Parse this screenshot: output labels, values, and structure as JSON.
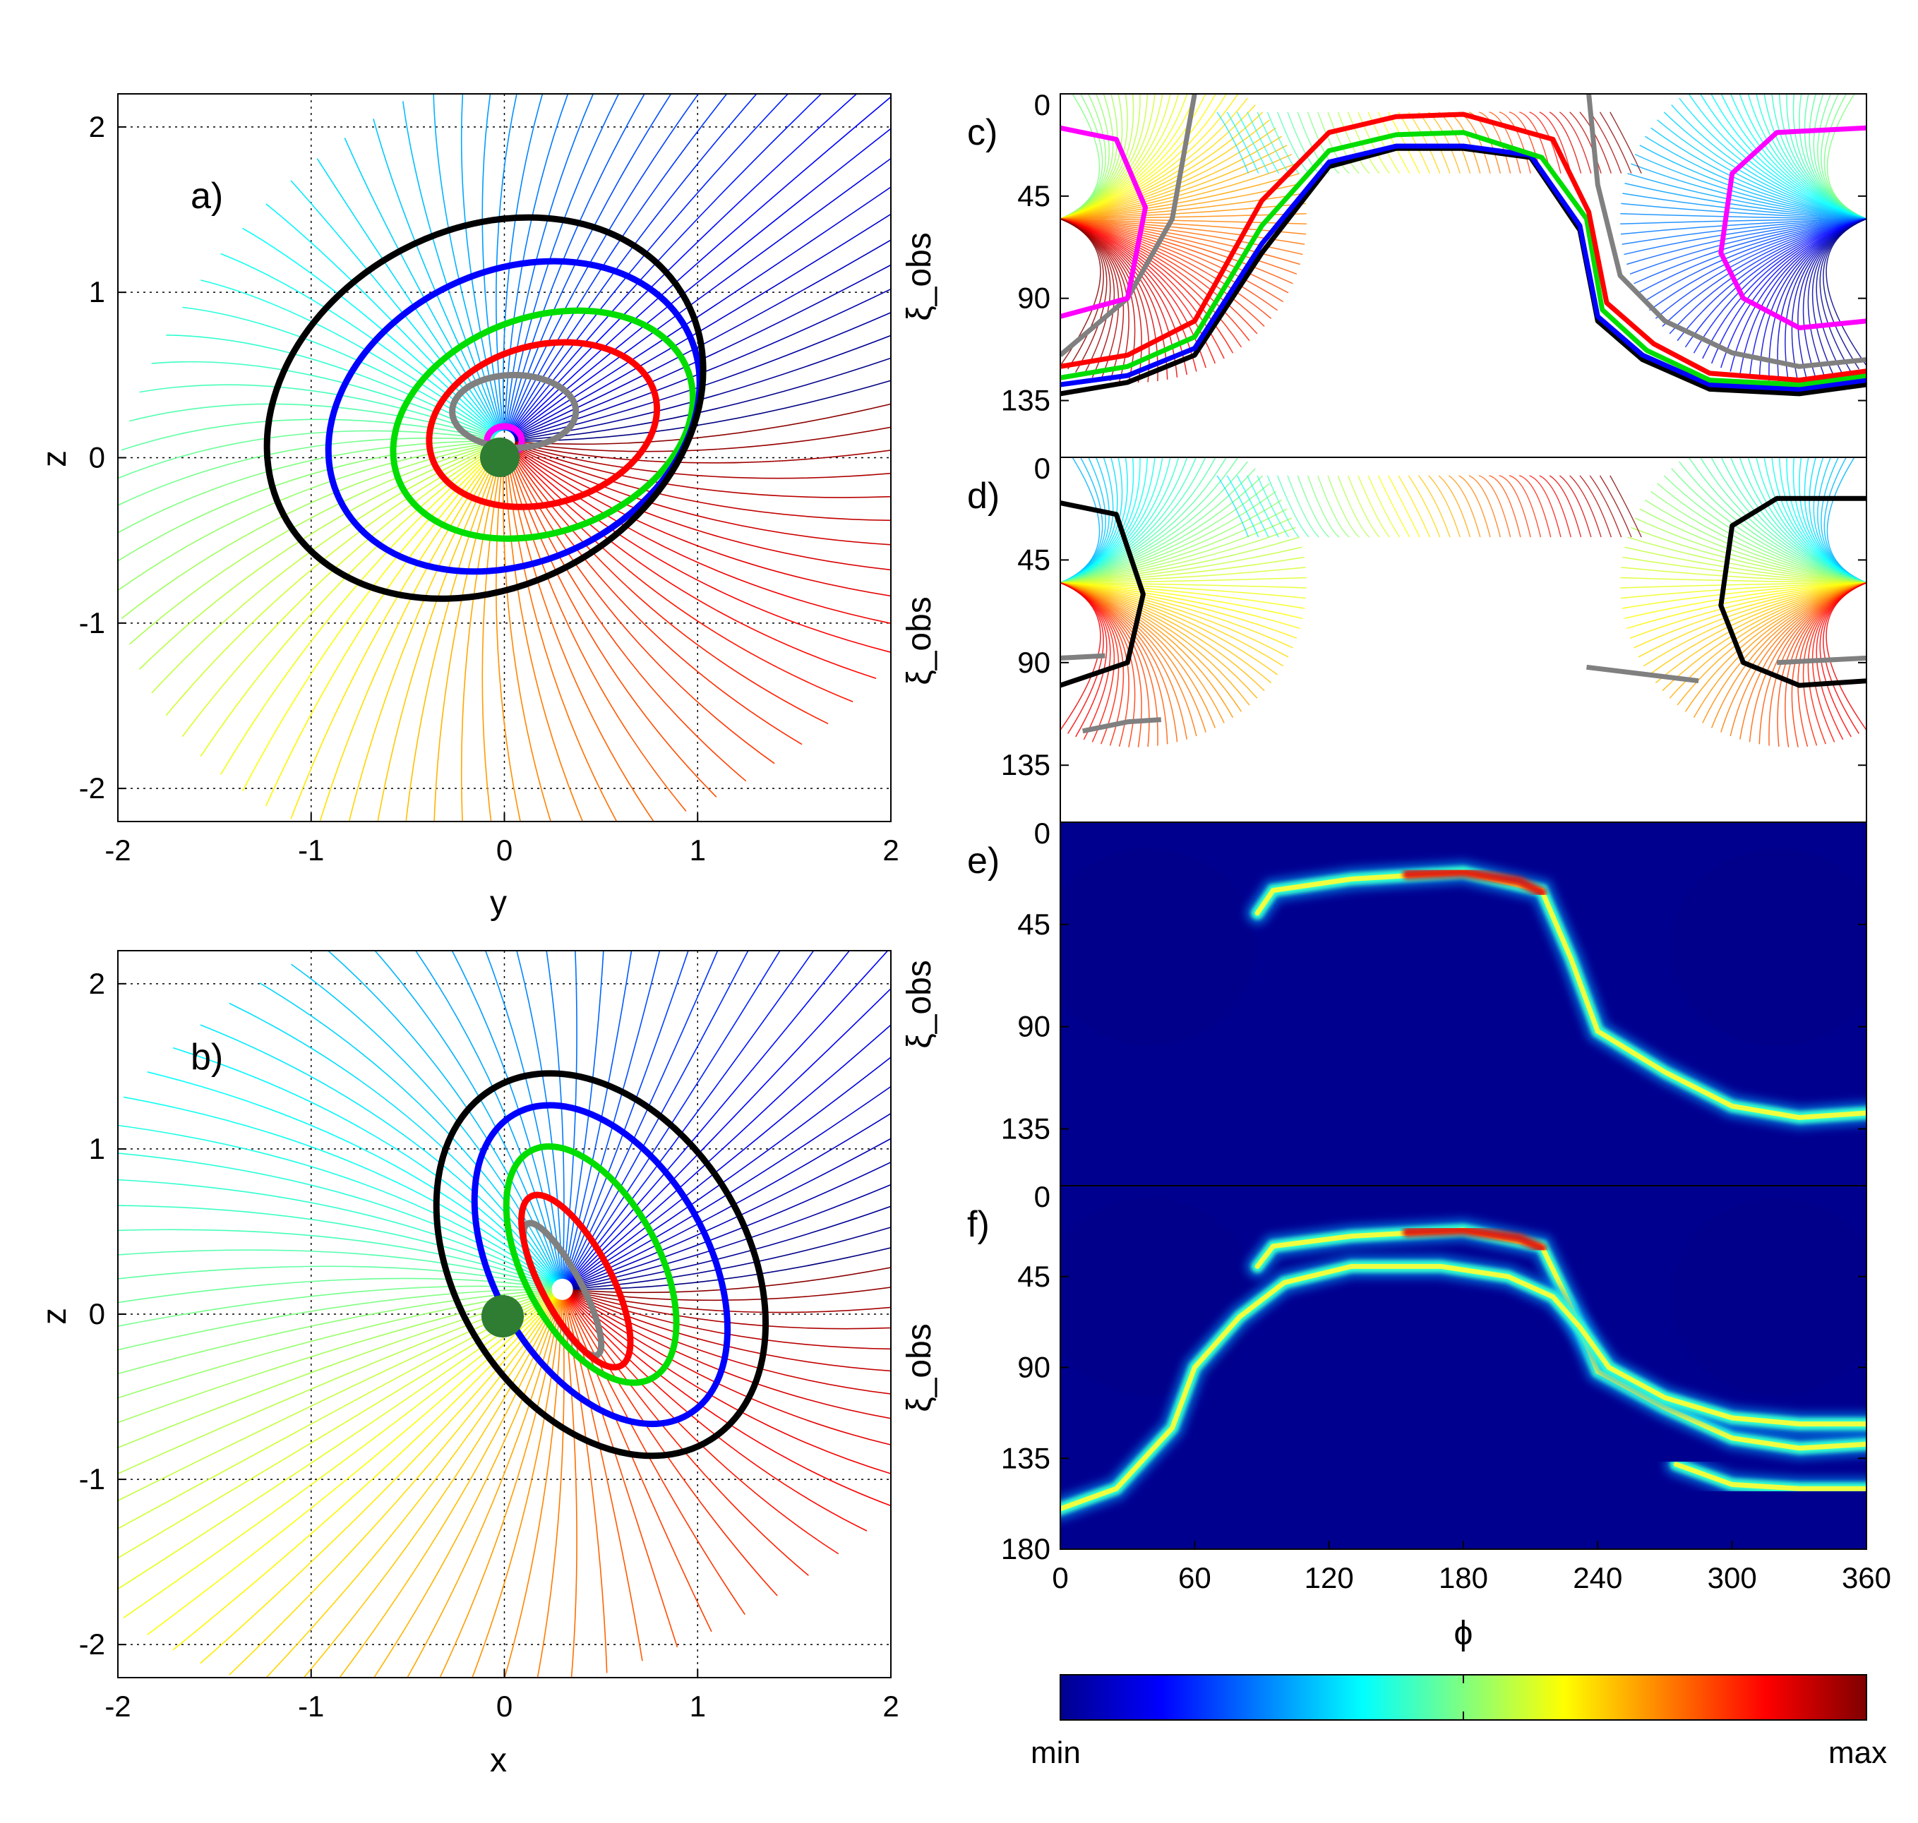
{
  "colormap_stops": [
    "#00008f",
    "#0000ff",
    "#00ffff",
    "#ffff00",
    "#ff0000",
    "#800000"
  ],
  "chart_data": [
    {
      "id": "a",
      "type": "line",
      "panel_label": "a)",
      "xlabel": "y",
      "ylabel": "z",
      "xlim": [
        -2,
        2
      ],
      "ylim": [
        -2.2,
        2.2
      ],
      "xticks": [
        -2,
        -1,
        0,
        1,
        2
      ],
      "yticks": [
        -2,
        -1,
        0,
        1,
        2
      ],
      "grid": true,
      "series": [
        {
          "name": "ring-magenta",
          "color": "#ff00ff",
          "center": [
            0.0,
            0.1
          ],
          "radii": [
            0.09,
            0.09
          ],
          "tilt_deg": 0
        },
        {
          "name": "ring-gray",
          "color": "#808080",
          "center": [
            0.05,
            0.28
          ],
          "radii": [
            0.32,
            0.22
          ],
          "tilt_deg": 0
        },
        {
          "name": "ring-red",
          "color": "#ff0000",
          "center": [
            0.2,
            0.2
          ],
          "radii": [
            0.6,
            0.48
          ],
          "tilt_deg": 15
        },
        {
          "name": "ring-green",
          "color": "#00dd00",
          "center": [
            0.2,
            0.2
          ],
          "radii": [
            0.8,
            0.65
          ],
          "tilt_deg": 20
        },
        {
          "name": "ring-blue",
          "color": "#0000ff",
          "center": [
            0.05,
            0.25
          ],
          "radii": [
            1.0,
            0.88
          ],
          "tilt_deg": 25
        },
        {
          "name": "ring-black",
          "color": "#000000",
          "center": [
            -0.1,
            0.3
          ],
          "radii": [
            1.18,
            1.08
          ],
          "tilt_deg": 28
        }
      ]
    },
    {
      "id": "b",
      "type": "line",
      "panel_label": "b)",
      "xlabel": "x",
      "ylabel": "z",
      "xlim": [
        -2,
        2
      ],
      "ylim": [
        -2.2,
        2.2
      ],
      "xticks": [
        -2,
        -1,
        0,
        1,
        2
      ],
      "yticks": [
        -2,
        -1,
        0,
        1,
        2
      ],
      "grid": true,
      "series": [
        {
          "name": "ring-gray",
          "color": "#808080",
          "center": [
            0.3,
            0.15
          ],
          "radii": [
            0.1,
            0.45
          ],
          "tilt_deg": 28
        },
        {
          "name": "ring-red",
          "color": "#ff0000",
          "center": [
            0.37,
            0.2
          ],
          "radii": [
            0.18,
            0.58
          ],
          "tilt_deg": 28
        },
        {
          "name": "ring-green",
          "color": "#00dd00",
          "center": [
            0.45,
            0.3
          ],
          "radii": [
            0.35,
            0.78
          ],
          "tilt_deg": 28
        },
        {
          "name": "ring-blue",
          "color": "#0000ff",
          "center": [
            0.5,
            0.3
          ],
          "radii": [
            0.55,
            1.05
          ],
          "tilt_deg": 30
        },
        {
          "name": "ring-black",
          "color": "#000000",
          "center": [
            0.5,
            0.3
          ],
          "radii": [
            0.75,
            1.25
          ],
          "tilt_deg": 32
        }
      ]
    },
    {
      "id": "c",
      "type": "line",
      "panel_label": "c)",
      "ylabel": "ξ_obs",
      "xlim": [
        0,
        360
      ],
      "ylim": [
        0,
        160
      ],
      "yticks": [
        0,
        45,
        90,
        135
      ],
      "series": [
        {
          "name": "black",
          "color": "#000000",
          "points": [
            [
              0,
              132
            ],
            [
              30,
              127
            ],
            [
              60,
              115
            ],
            [
              90,
              70
            ],
            [
              120,
              32
            ],
            [
              150,
              24
            ],
            [
              180,
              24
            ],
            [
              210,
              28
            ],
            [
              232,
              60
            ],
            [
              240,
              100
            ],
            [
              260,
              117
            ],
            [
              290,
              130
            ],
            [
              330,
              132
            ],
            [
              360,
              128
            ]
          ]
        },
        {
          "name": "blue",
          "color": "#0000ff",
          "points": [
            [
              0,
              128
            ],
            [
              30,
              124
            ],
            [
              60,
              112
            ],
            [
              90,
              66
            ],
            [
              120,
              30
            ],
            [
              150,
              23
            ],
            [
              180,
              23
            ],
            [
              210,
              27
            ],
            [
              232,
              58
            ],
            [
              240,
              98
            ],
            [
              260,
              115
            ],
            [
              290,
              128
            ],
            [
              330,
              130
            ],
            [
              360,
              126
            ]
          ]
        },
        {
          "name": "green",
          "color": "#00dd00",
          "points": [
            [
              0,
              125
            ],
            [
              30,
              120
            ],
            [
              60,
              107
            ],
            [
              90,
              58
            ],
            [
              120,
              25
            ],
            [
              150,
              18
            ],
            [
              180,
              17
            ],
            [
              215,
              28
            ],
            [
              235,
              55
            ],
            [
              242,
              95
            ],
            [
              262,
              113
            ],
            [
              290,
              126
            ],
            [
              330,
              128
            ],
            [
              360,
              124
            ]
          ]
        },
        {
          "name": "red",
          "color": "#ff0000",
          "points": [
            [
              0,
              120
            ],
            [
              30,
              115
            ],
            [
              60,
              100
            ],
            [
              90,
              47
            ],
            [
              120,
              17
            ],
            [
              150,
              10
            ],
            [
              180,
              9
            ],
            [
              220,
              20
            ],
            [
              236,
              52
            ],
            [
              244,
              92
            ],
            [
              265,
              110
            ],
            [
              290,
              123
            ],
            [
              330,
              126
            ],
            [
              360,
              122
            ]
          ]
        },
        {
          "name": "gray",
          "color": "#808080",
          "points": [
            [
              0,
              115
            ],
            [
              30,
              90
            ],
            [
              50,
              55
            ],
            [
              60,
              0
            ]
          ]
        },
        {
          "name": "gray-2",
          "color": "#808080",
          "points": [
            [
              236,
              0
            ],
            [
              240,
              40
            ],
            [
              250,
              80
            ],
            [
              270,
              100
            ],
            [
              300,
              114
            ],
            [
              330,
              120
            ],
            [
              360,
              117
            ]
          ]
        },
        {
          "name": "magenta",
          "color": "#ff00ff",
          "points": [
            [
              0,
              15
            ],
            [
              25,
              20
            ],
            [
              38,
              50
            ],
            [
              30,
              90
            ],
            [
              0,
              98
            ]
          ]
        },
        {
          "name": "magenta-2",
          "color": "#ff00ff",
          "points": [
            [
              360,
              15
            ],
            [
              320,
              17
            ],
            [
              300,
              35
            ],
            [
              295,
              70
            ],
            [
              305,
              90
            ],
            [
              330,
              103
            ],
            [
              360,
              100
            ]
          ]
        }
      ]
    },
    {
      "id": "d",
      "type": "line",
      "panel_label": "d)",
      "ylabel": "ξ_obs",
      "xlim": [
        0,
        360
      ],
      "ylim": [
        0,
        160
      ],
      "yticks": [
        0,
        45,
        90,
        135
      ],
      "series": [
        {
          "name": "black",
          "color": "#000000",
          "points": [
            [
              0,
              20
            ],
            [
              25,
              25
            ],
            [
              37,
              60
            ],
            [
              30,
              90
            ],
            [
              0,
              100
            ]
          ]
        },
        {
          "name": "black-2",
          "color": "#000000",
          "points": [
            [
              360,
              18
            ],
            [
              320,
              18
            ],
            [
              300,
              30
            ],
            [
              295,
              65
            ],
            [
              305,
              90
            ],
            [
              330,
              100
            ],
            [
              360,
              98
            ]
          ]
        },
        {
          "name": "gray",
          "color": "#808080",
          "points": [
            [
              0,
              88
            ],
            [
              20,
              87
            ]
          ]
        },
        {
          "name": "gray-2",
          "color": "#808080",
          "points": [
            [
              10,
              120
            ],
            [
              30,
              116
            ],
            [
              45,
              115
            ]
          ]
        },
        {
          "name": "gray-3",
          "color": "#808080",
          "points": [
            [
              235,
              92
            ],
            [
              260,
              95
            ],
            [
              285,
              98
            ]
          ]
        },
        {
          "name": "gray-4",
          "color": "#808080",
          "points": [
            [
              320,
              90
            ],
            [
              360,
              88
            ]
          ]
        }
      ]
    },
    {
      "id": "e",
      "type": "heatmap",
      "panel_label": "e)",
      "ylabel": "ξ_obs",
      "xlim": [
        0,
        360
      ],
      "ylim": [
        0,
        160
      ],
      "yticks": [
        0,
        45,
        90,
        135
      ],
      "ridges": [
        {
          "name": "ridge",
          "points": [
            [
              88,
              40
            ],
            [
              95,
              30
            ],
            [
              130,
              25
            ],
            [
              180,
              22
            ],
            [
              215,
              30
            ],
            [
              228,
              60
            ],
            [
              240,
              92
            ],
            [
              270,
              110
            ],
            [
              300,
              125
            ],
            [
              330,
              130
            ],
            [
              360,
              128
            ]
          ]
        }
      ]
    },
    {
      "id": "f",
      "type": "heatmap",
      "panel_label": "f)",
      "ylabel": "ξ_obs",
      "xlabel": "ϕ",
      "xlim": [
        0,
        360
      ],
      "ylim": [
        0,
        180
      ],
      "xticks": [
        0,
        60,
        120,
        180,
        240,
        300,
        360
      ],
      "yticks": [
        0,
        45,
        90,
        135,
        180
      ],
      "ridges": [
        {
          "name": "upper",
          "points": [
            [
              88,
              40
            ],
            [
              95,
              30
            ],
            [
              130,
              25
            ],
            [
              180,
              22
            ],
            [
              215,
              30
            ],
            [
              228,
              60
            ],
            [
              240,
              92
            ],
            [
              270,
              110
            ],
            [
              300,
              125
            ],
            [
              330,
              130
            ],
            [
              360,
              128
            ]
          ]
        },
        {
          "name": "lower",
          "points": [
            [
              0,
              160
            ],
            [
              25,
              150
            ],
            [
              50,
              120
            ],
            [
              60,
              90
            ],
            [
              80,
              65
            ],
            [
              100,
              48
            ],
            [
              130,
              40
            ],
            [
              170,
              40
            ],
            [
              200,
              45
            ],
            [
              220,
              55
            ],
            [
              232,
              70
            ],
            [
              245,
              90
            ],
            [
              270,
              105
            ],
            [
              300,
              115
            ],
            [
              330,
              118
            ],
            [
              360,
              118
            ]
          ]
        },
        {
          "name": "tail",
          "points": [
            [
              275,
              138
            ],
            [
              300,
              148
            ],
            [
              330,
              150
            ],
            [
              360,
              150
            ]
          ]
        }
      ]
    }
  ],
  "colorbar": {
    "min_label": "min",
    "max_label": "max"
  }
}
